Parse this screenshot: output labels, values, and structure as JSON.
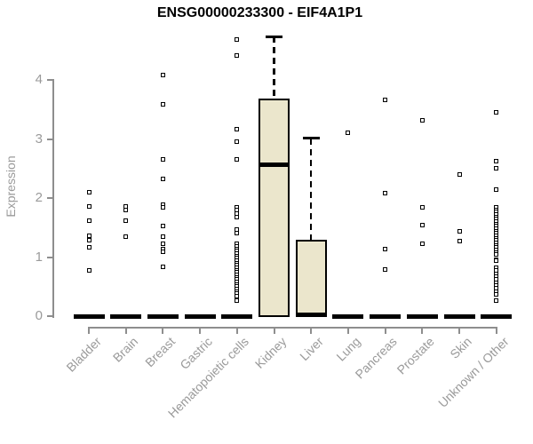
{
  "chart_data": {
    "type": "boxplot",
    "title": "ENSG00000233300 - EIF4A1P1",
    "ylabel": "Expression",
    "xlabel": "",
    "ylim": [
      0,
      4.75
    ],
    "yticks": [
      0,
      1,
      2,
      3,
      4
    ],
    "grid": false,
    "legend": false,
    "box_fill_color": "#EBE6CC",
    "box_border_color": "#000000",
    "axis_color": "#8e8e8e",
    "tick_label_color": "#9a9a9a",
    "title_color": "#000000",
    "categories": [
      "Bladder",
      "Brain",
      "Breast",
      "Gastric",
      "Hematopoietic cells",
      "Kidney",
      "Liver",
      "Lung",
      "Pancreas",
      "Prostate",
      "Skin",
      "Unknown / Other"
    ],
    "boxes": [
      {
        "category": "Bladder",
        "q1": 0,
        "median": 0,
        "q3": 0,
        "whisker_low": 0,
        "whisker_high": 0,
        "outliers": [
          2.1,
          1.86,
          1.62,
          1.36,
          1.29,
          1.16,
          0.78
        ]
      },
      {
        "category": "Brain",
        "q1": 0,
        "median": 0,
        "q3": 0,
        "whisker_low": 0,
        "whisker_high": 0,
        "outliers": [
          1.86,
          1.8,
          1.62,
          1.34
        ]
      },
      {
        "category": "Breast",
        "q1": 0,
        "median": 0,
        "q3": 0,
        "whisker_low": 0,
        "whisker_high": 0,
        "outliers": [
          4.08,
          3.58,
          2.65,
          2.33,
          1.89,
          1.84,
          1.52,
          1.34,
          1.23,
          1.13,
          1.09,
          0.84
        ]
      },
      {
        "category": "Gastric",
        "q1": 0,
        "median": 0,
        "q3": 0,
        "whisker_low": 0,
        "whisker_high": 0,
        "outliers": []
      },
      {
        "category": "Hematopoietic cells",
        "q1": 0,
        "median": 0,
        "q3": 0,
        "whisker_low": 0,
        "whisker_high": 0,
        "outliers": [
          4.68,
          4.42,
          3.17,
          2.95,
          2.65,
          1.84,
          1.79,
          1.73,
          1.68,
          1.47,
          1.4,
          1.22,
          1.18,
          1.14,
          1.1,
          1.06,
          1.02,
          0.98,
          0.94,
          0.9,
          0.86,
          0.82,
          0.78,
          0.74,
          0.7,
          0.66,
          0.62,
          0.58,
          0.54,
          0.5,
          0.46,
          0.42,
          0.38,
          0.34,
          0.27
        ]
      },
      {
        "category": "Kidney",
        "q1": 0,
        "median": 2.57,
        "q3": 3.67,
        "whisker_low": 0,
        "whisker_high": 4.73,
        "outliers": []
      },
      {
        "category": "Liver",
        "q1": 0,
        "median": 0.02,
        "q3": 1.28,
        "whisker_low": 0,
        "whisker_high": 3.01,
        "outliers": []
      },
      {
        "category": "Lung",
        "q1": 0,
        "median": 0,
        "q3": 0,
        "whisker_low": 0,
        "whisker_high": 0,
        "outliers": [
          3.1
        ]
      },
      {
        "category": "Pancreas",
        "q1": 0,
        "median": 0,
        "q3": 0,
        "whisker_low": 0,
        "whisker_high": 0,
        "outliers": [
          3.66,
          2.09,
          1.14,
          0.79
        ]
      },
      {
        "category": "Prostate",
        "q1": 0,
        "median": 0,
        "q3": 0,
        "whisker_low": 0,
        "whisker_high": 0,
        "outliers": [
          3.31,
          1.84,
          1.54,
          1.23
        ]
      },
      {
        "category": "Skin",
        "q1": 0,
        "median": 0,
        "q3": 0,
        "whisker_low": 0,
        "whisker_high": 0,
        "outliers": [
          2.4,
          1.44,
          1.27
        ]
      },
      {
        "category": "Unknown / Other",
        "q1": 0,
        "median": 0,
        "q3": 0,
        "whisker_low": 0,
        "whisker_high": 0,
        "outliers": [
          3.45,
          2.62,
          2.5,
          2.15,
          1.84,
          1.8,
          1.76,
          1.72,
          1.68,
          1.64,
          1.6,
          1.56,
          1.52,
          1.48,
          1.44,
          1.4,
          1.36,
          1.32,
          1.28,
          1.24,
          1.2,
          1.16,
          1.12,
          1.08,
          1.04,
          0.96,
          0.94,
          0.82,
          0.77,
          0.72,
          0.67,
          0.62,
          0.57,
          0.52,
          0.47,
          0.42,
          0.37,
          0.27
        ]
      }
    ]
  }
}
